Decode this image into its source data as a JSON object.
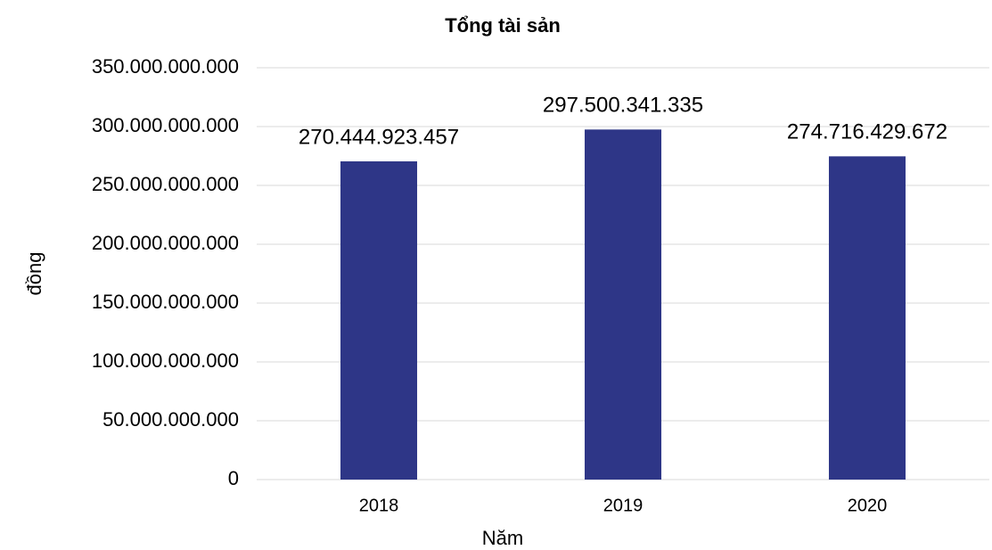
{
  "chart_data": {
    "type": "bar",
    "title": "Tổng tài sản",
    "x_label": "Năm",
    "y_label": "đồng",
    "categories": [
      "2018",
      "2019",
      "2020"
    ],
    "values": [
      270444923457,
      297500341335,
      274716429672
    ],
    "value_labels": [
      "270.444.923.457",
      "297.500.341.335",
      "274.716.429.672"
    ],
    "color": "#2e3687",
    "ylim": [
      0,
      350000000000
    ],
    "yticks": [
      0,
      {
        "value": 50000000000,
        "label": "50.000.000.000"
      },
      {
        "value": 100000000000,
        "label": "100.000.000.000"
      },
      {
        "value": 150000000000,
        "label": "150.000.000.000"
      },
      {
        "value": 200000000000,
        "label": "200.000.000.000"
      },
      {
        "value": 250000000000,
        "label": "250.000.000.000"
      },
      {
        "value": 300000000000,
        "label": "300.000.000.000"
      },
      {
        "value": 350000000000,
        "label": "350.000.000.000"
      }
    ],
    "grid": true
  }
}
